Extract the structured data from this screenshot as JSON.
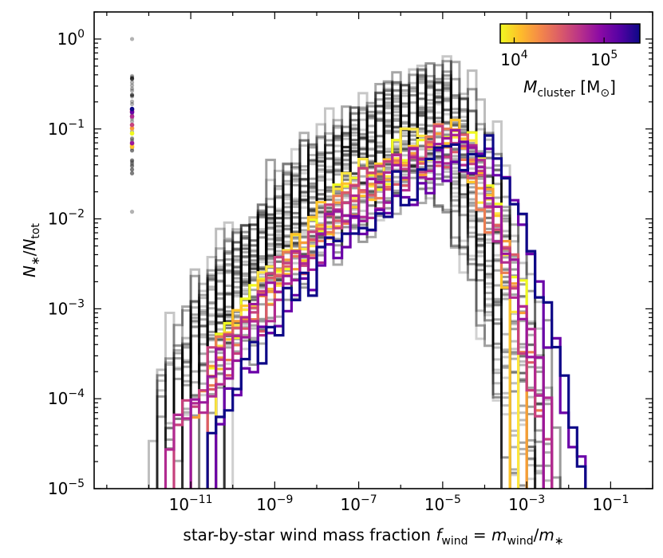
{
  "chart_data": {
    "type": "histogram-step",
    "x_scale": "log",
    "y_scale": "log",
    "xlim": [
      5e-14,
      1
    ],
    "ylim": [
      1e-05,
      2
    ],
    "x_ticks": [
      1e-11,
      1e-09,
      1e-07,
      1e-05,
      0.001,
      0.1
    ],
    "x_tick_labels": [
      {
        "base": "10",
        "exp": "−11"
      },
      {
        "base": "10",
        "exp": "−9"
      },
      {
        "base": "10",
        "exp": "−7"
      },
      {
        "base": "10",
        "exp": "−5"
      },
      {
        "base": "10",
        "exp": "−3"
      },
      {
        "base": "10",
        "exp": "−1"
      }
    ],
    "y_ticks": [
      1e-05,
      0.0001,
      0.001,
      0.01,
      0.1,
      1
    ],
    "y_tick_labels": [
      {
        "base": "10",
        "exp": "−5"
      },
      {
        "base": "10",
        "exp": "−4"
      },
      {
        "base": "10",
        "exp": "−3"
      },
      {
        "base": "10",
        "exp": "−2"
      },
      {
        "base": "10",
        "exp": "−1"
      },
      {
        "base": "10",
        "exp": "0"
      }
    ],
    "xlabel": {
      "text": "star-by-star wind mass fraction ",
      "f": "f",
      "f_sub": "wind",
      "eq": " = ",
      "m": "m",
      "m_sub": "wind",
      "slash": "/",
      "m2": "m",
      "m2_sub": "∗"
    },
    "ylabel": {
      "n": "N",
      "n_sub": "∗",
      "slash": "/",
      "n2": "N",
      "n2_sub": "tot"
    },
    "colorbar": {
      "label_main": "M",
      "label_sub": "cluster",
      "label_unit": " [M",
      "label_unit_sub": "⊙",
      "label_close": "]",
      "scale": "log",
      "range": [
        7000,
        250000
      ],
      "ticks": [
        {
          "value": 10000,
          "base": "10",
          "exp": "4"
        },
        {
          "value": 100000,
          "base": "10",
          "exp": "5"
        }
      ],
      "colormap": "plasma-truncated",
      "colors": [
        "#0d0887",
        "#5402a3",
        "#8b0aa5",
        "#b93289",
        "#db5c68",
        "#f48849",
        "#febd2a",
        "#f0f921"
      ]
    },
    "gray_histograms": {
      "count": 40,
      "color": "#000000",
      "peak_x": 1e-05,
      "peak_y_range": [
        0.05,
        0.2
      ],
      "low_x_range": [
        1e-12,
        1e-10
      ],
      "high_x_range": [
        0.0002,
        0.05
      ]
    },
    "colored_histograms": [
      {
        "mass": 8000,
        "color": "#f0f921",
        "peak": 0.1,
        "peak_x": 3e-05,
        "xmin": 2e-11,
        "xmax": 0.001
      },
      {
        "mass": 9000,
        "color": "#fce640",
        "peak": 0.09,
        "peak_x": 2e-05,
        "xmin": 5e-11,
        "xmax": 0.0006
      },
      {
        "mass": 11000,
        "color": "#fdc328",
        "peak": 0.08,
        "peak_x": 2e-05,
        "xmin": 2e-11,
        "xmax": 0.0005
      },
      {
        "mass": 13000,
        "color": "#f79d37",
        "peak": 0.075,
        "peak_x": 3e-05,
        "xmin": 1e-11,
        "xmax": 0.0008
      },
      {
        "mass": 16000,
        "color": "#ea7c52",
        "peak": 0.07,
        "peak_x": 2e-05,
        "xmin": 3e-11,
        "xmax": 0.002
      },
      {
        "mass": 20000,
        "color": "#db5c68",
        "peak": 0.065,
        "peak_x": 3e-05,
        "xmin": 2e-11,
        "xmax": 0.003
      },
      {
        "mass": 25000,
        "color": "#c6417d",
        "peak": 0.07,
        "peak_x": 2e-05,
        "xmin": 5e-12,
        "xmax": 0.004
      },
      {
        "mass": 32000,
        "color": "#b12a90",
        "peak": 0.06,
        "peak_x": 3e-05,
        "xmin": 3e-12,
        "xmax": 0.005
      },
      {
        "mass": 45000,
        "color": "#9a179b",
        "peak": 0.06,
        "peak_x": 3e-05,
        "xmin": 1e-11,
        "xmax": 0.003
      },
      {
        "mass": 150000,
        "color": "#6a00a8",
        "peak": 0.055,
        "peak_x": 0.0001,
        "xmin": 5e-11,
        "xmax": 0.08
      },
      {
        "mass": 200000,
        "color": "#0d0887",
        "peak": 0.06,
        "peak_x": 0.0001,
        "xmin": 3e-11,
        "xmax": 0.04
      }
    ]
  }
}
